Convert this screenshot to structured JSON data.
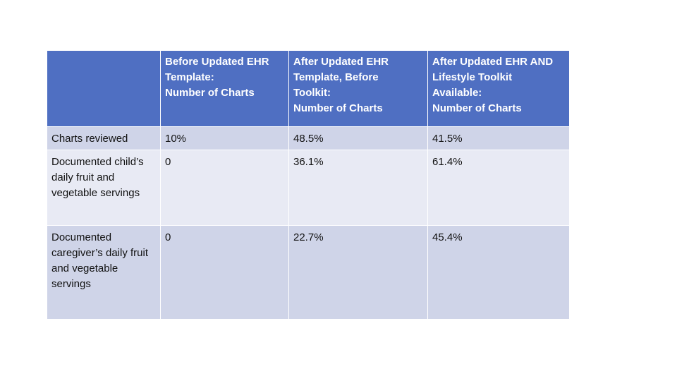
{
  "table": {
    "headers": [
      [],
      [
        "Before Updated EHR",
        "Template:",
        "Number of Charts"
      ],
      [
        "After Updated EHR",
        "Template, Before",
        "Toolkit:",
        "Number of Charts"
      ],
      [
        "After Updated EHR AND",
        "Lifestyle Toolkit",
        "Available:",
        "Number of Charts"
      ]
    ],
    "rows": [
      {
        "label": "Charts reviewed",
        "values": [
          "10%",
          "48.5%",
          "41.5%"
        ]
      },
      {
        "label": "Documented child’s daily fruit and vegetable servings",
        "values": [
          "0",
          "36.1%",
          "61.4%"
        ]
      },
      {
        "label": "Documented caregiver’s daily fruit and vegetable servings",
        "values": [
          "0",
          "22.7%",
          "45.4%"
        ]
      }
    ]
  },
  "colors": {
    "header_bg": "#4f6fc2",
    "row_dark": "#cfd4e8",
    "row_light": "#e8eaf4"
  }
}
